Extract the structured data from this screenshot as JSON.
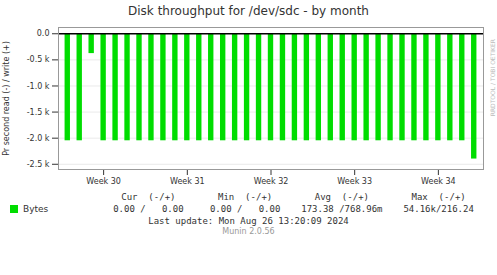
{
  "chart_data": {
    "type": "bar",
    "title": "Disk throughput for /dev/sdc - by month",
    "ylabel": "Pr second read (-) / write (+)",
    "categories": [
      null,
      null,
      null,
      "Week 30",
      null,
      null,
      null,
      null,
      null,
      null,
      "Week 31",
      null,
      null,
      null,
      null,
      null,
      null,
      "Week 32",
      null,
      null,
      null,
      null,
      null,
      null,
      "Week 33",
      null,
      null,
      null,
      null,
      null,
      null,
      "Week 34",
      null,
      null,
      null
    ],
    "series": [
      {
        "name": "Bytes",
        "color": "#00dd00",
        "values": [
          -2050,
          -2050,
          -380,
          -2050,
          -2050,
          -2050,
          -2050,
          -2050,
          -2050,
          -2050,
          -2050,
          -2050,
          -2050,
          -2050,
          -2050,
          -2050,
          -2050,
          -2050,
          -2050,
          -2050,
          -2050,
          -2050,
          -2050,
          -2050,
          -2050,
          -2050,
          -2050,
          -2050,
          -2050,
          -2050,
          -2050,
          -2050,
          -2050,
          -2050,
          -2400
        ]
      }
    ],
    "ylim": [
      -2600,
      120
    ],
    "yticks": [
      {
        "value": 0,
        "label": "0.0"
      },
      {
        "value": -500,
        "label": "-0.5 k"
      },
      {
        "value": -1000,
        "label": "-1.0 k"
      },
      {
        "value": -1500,
        "label": "-1.5 k"
      },
      {
        "value": -2000,
        "label": "-2.0 k"
      },
      {
        "value": -2500,
        "label": "-2.5 k"
      }
    ],
    "grid": true,
    "legend": "bottom left",
    "annotations": [
      [
        "Cur  (-/+)",
        "Min  (-/+)",
        "Avg  (-/+)",
        "Max  (-/+)"
      ],
      [
        "0.00 /   0.00",
        "0.00 /   0.00",
        "173.38 /768.96m",
        "54.16k/216.24"
      ],
      [
        "Last update: Mon Aug 26 13:20:09 2024"
      ],
      [
        "Munin 2.0.56"
      ],
      [
        "RRDTOOL / TOBI OETIKER"
      ]
    ]
  }
}
